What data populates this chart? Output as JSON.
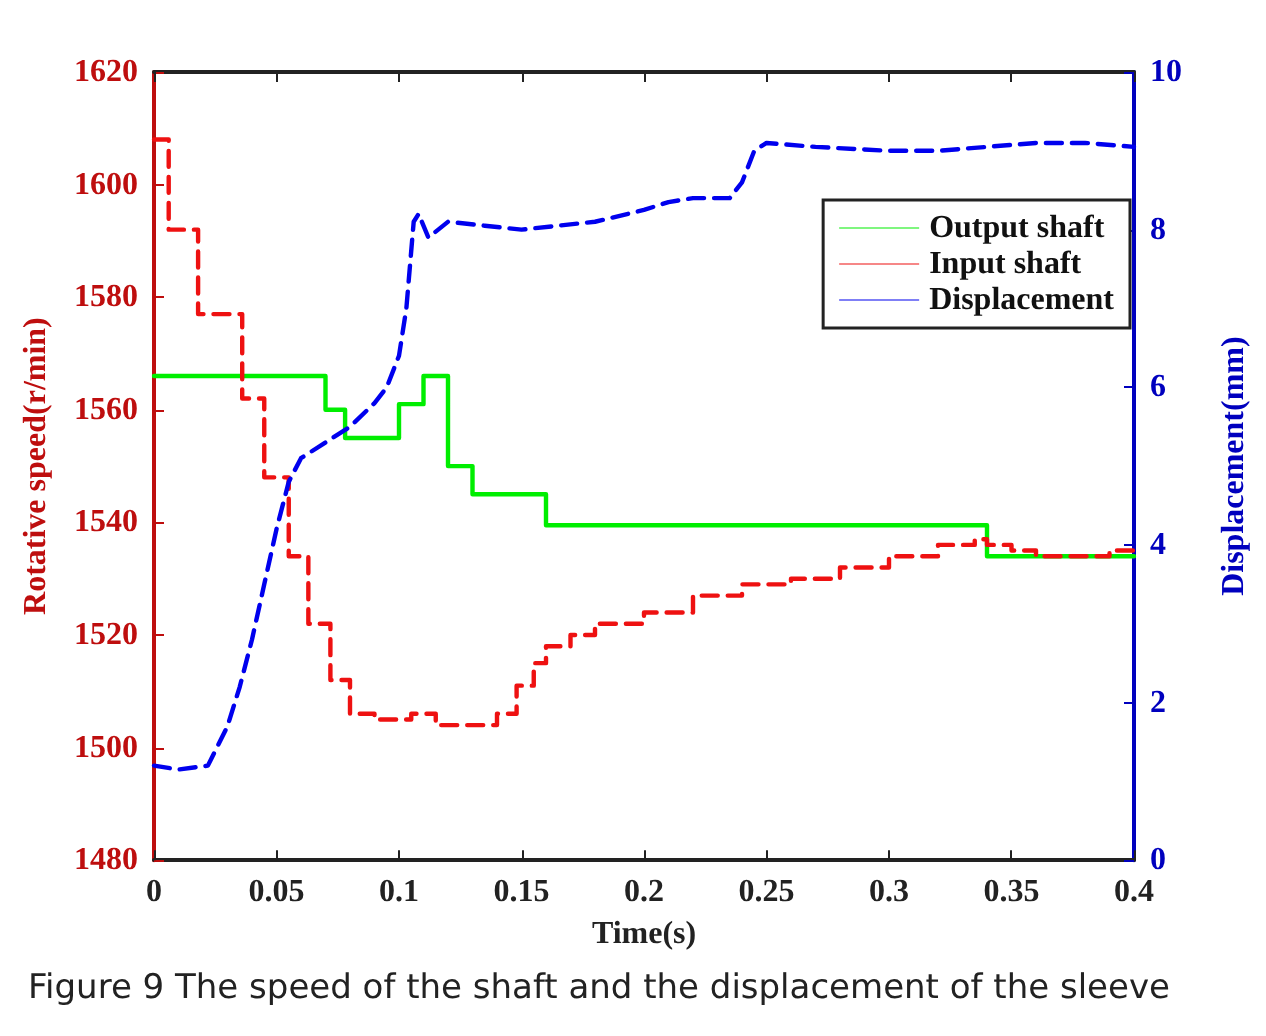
{
  "chart_data": {
    "type": "step",
    "xlabel": "Time(s)",
    "ylabel": "Rotative speed(r/min)",
    "y2label": "Displacement(mm)",
    "xlim": [
      0,
      0.4
    ],
    "xticks": [
      0,
      0.05,
      0.1,
      0.15,
      0.2,
      0.25,
      0.3,
      0.35,
      0.4
    ],
    "ylim": [
      1480,
      1620
    ],
    "yticks": [
      1480,
      1500,
      1520,
      1540,
      1560,
      1580,
      1600,
      1620
    ],
    "y2lim": [
      0,
      10
    ],
    "y2ticks": [
      0,
      2,
      4,
      6,
      8,
      10
    ],
    "grid": false,
    "legend": "top right",
    "marker": "none",
    "series": [
      {
        "name": "Output shaft",
        "color": "#00ee00",
        "line_style": "solid",
        "x": [
          0,
          0.07,
          0.078,
          0.1,
          0.11,
          0.12,
          0.13,
          0.16,
          0.34,
          0.4
        ],
        "values": [
          1566,
          1560,
          1555,
          1561,
          1566,
          1550,
          1545,
          1539.5,
          1534,
          1534
        ]
      },
      {
        "name": "Input shaft",
        "color": "#ee1111",
        "line_style": "dashed",
        "x": [
          0,
          0.006,
          0.018,
          0.036,
          0.045,
          0.055,
          0.063,
          0.072,
          0.08,
          0.09,
          0.105,
          0.115,
          0.14,
          0.148,
          0.155,
          0.16,
          0.17,
          0.18,
          0.2,
          0.22,
          0.24,
          0.26,
          0.28,
          0.3,
          0.32,
          0.335,
          0.34,
          0.35,
          0.36,
          0.39,
          0.4
        ],
        "values": [
          1608,
          1592,
          1577,
          1562,
          1548,
          1534,
          1522,
          1512,
          1506,
          1505,
          1506,
          1504,
          1506,
          1511,
          1515,
          1518,
          1520,
          1522,
          1524,
          1527,
          1529,
          1530,
          1532,
          1534,
          1536,
          1537,
          1536,
          1535,
          1534,
          1535,
          1535
        ]
      },
      {
        "name": "Displacement",
        "type": "line",
        "axis": "y2",
        "color": "#0000ee",
        "line_style": "dashed",
        "x": [
          0,
          0.01,
          0.022,
          0.03,
          0.035,
          0.04,
          0.045,
          0.05,
          0.055,
          0.06,
          0.07,
          0.08,
          0.09,
          0.095,
          0.1,
          0.103,
          0.106,
          0.108,
          0.112,
          0.12,
          0.135,
          0.15,
          0.165,
          0.18,
          0.2,
          0.21,
          0.22,
          0.235,
          0.24,
          0.245,
          0.25,
          0.27,
          0.3,
          0.32,
          0.34,
          0.36,
          0.38,
          0.4
        ],
        "values": [
          1.2,
          1.15,
          1.2,
          1.7,
          2.2,
          2.8,
          3.5,
          4.2,
          4.8,
          5.1,
          5.3,
          5.5,
          5.8,
          6.0,
          6.4,
          7.0,
          8.1,
          8.2,
          7.9,
          8.1,
          8.05,
          8.0,
          8.05,
          8.1,
          8.25,
          8.35,
          8.4,
          8.4,
          8.6,
          9.0,
          9.1,
          9.05,
          9.0,
          9.0,
          9.05,
          9.1,
          9.1,
          9.05
        ]
      }
    ],
    "annotations": [
      "Figure 9  The speed of the shaft and the displacement of the sleeve"
    ]
  }
}
